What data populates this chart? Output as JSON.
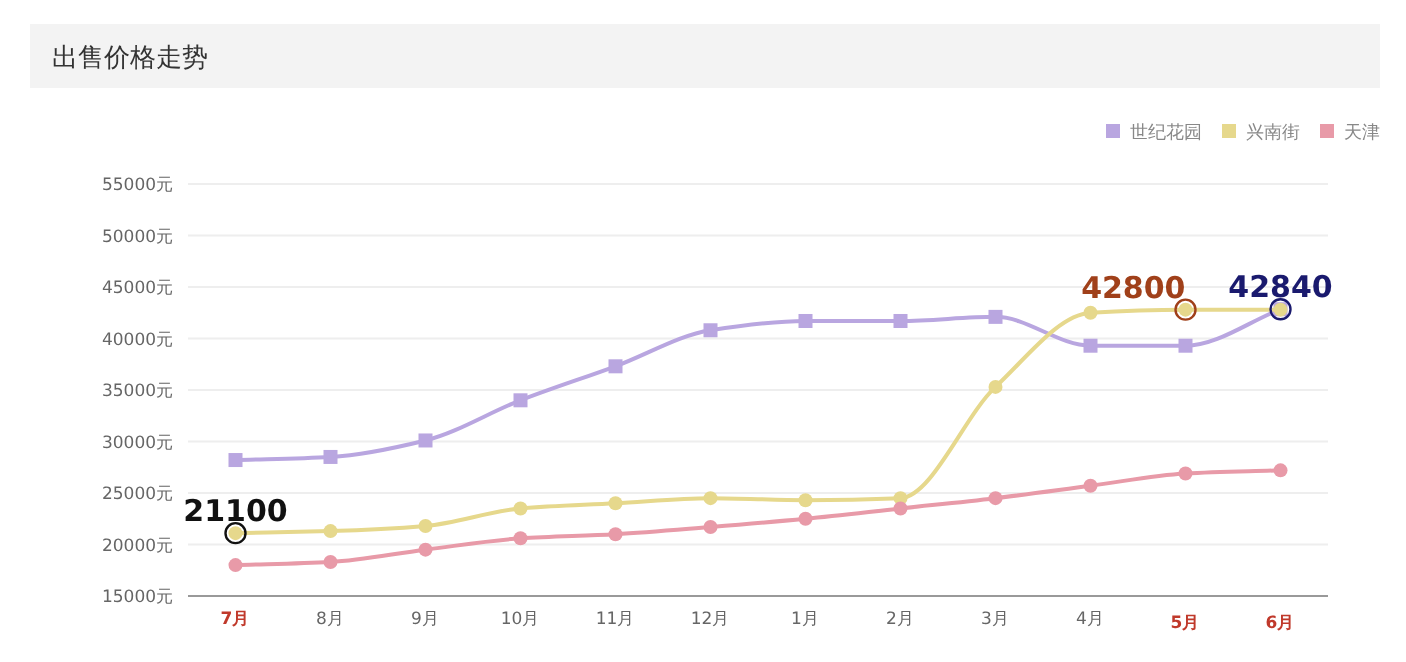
{
  "chart_data": {
    "type": "line",
    "title": "出售价格走势",
    "categories": [
      "7月",
      "8月",
      "9月",
      "10月",
      "11月",
      "12月",
      "1月",
      "2月",
      "3月",
      "4月",
      "5月",
      "6月"
    ],
    "series": [
      {
        "name": "世纪花园",
        "color": "#b9a6e0",
        "marker": "square",
        "values": [
          28200,
          28500,
          30100,
          34000,
          37300,
          40800,
          41700,
          41700,
          42100,
          39300,
          39300,
          42840
        ]
      },
      {
        "name": "兴南街",
        "color": "#e6d88c",
        "marker": "circle",
        "values": [
          21100,
          21300,
          21800,
          23500,
          24000,
          24500,
          24300,
          24500,
          35300,
          42500,
          42800,
          42800
        ]
      },
      {
        "name": "天津",
        "color": "#e89aa8",
        "marker": "circle",
        "values": [
          18000,
          18300,
          19500,
          20600,
          21000,
          21700,
          22500,
          23500,
          24500,
          25700,
          26900,
          27200
        ]
      }
    ],
    "ylim": [
      15000,
      55000
    ],
    "yticks": [
      {
        "value": 15000,
        "label": "15000元"
      },
      {
        "value": 20000,
        "label": "20000元"
      },
      {
        "value": 25000,
        "label": "25000元"
      },
      {
        "value": 30000,
        "label": "30000元"
      },
      {
        "value": 35000,
        "label": "35000元"
      },
      {
        "value": 40000,
        "label": "40000元"
      },
      {
        "value": 45000,
        "label": "45000元"
      },
      {
        "value": 50000,
        "label": "50000元"
      },
      {
        "value": 55000,
        "label": "55000元"
      }
    ],
    "grid": "y",
    "legend": "top right",
    "annotations": [
      {
        "text": "21100",
        "x": "7月",
        "y": 21100
      },
      {
        "text": "42800",
        "x": "5月",
        "y": 42800
      },
      {
        "text": "42840",
        "x": "6月",
        "y": 42840
      }
    ]
  }
}
